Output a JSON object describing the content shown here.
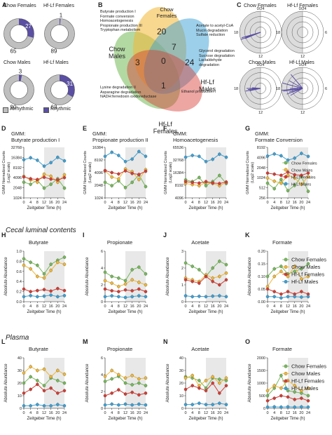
{
  "colors": {
    "chow_f": "#74b957",
    "chow_m": "#f2b733",
    "hf_f": "#d63a31",
    "hf_m": "#3aa0d6",
    "rhythmic": "#5a4fa2",
    "arrhythmic": "#bfbfbf",
    "shade": "#e8e8e8"
  },
  "panelA": {
    "label": "A",
    "donuts": [
      {
        "title": "Chow Females",
        "rhythmic": 27,
        "arrhythmic": 65
      },
      {
        "title": "Hf-Lf Females",
        "rhythmic": 1,
        "arrhythmic": 89
      },
      {
        "title": "Chow Males",
        "rhythmic": 3,
        "arrhythmic": 90
      },
      {
        "title": "Hf-Lf Males",
        "rhythmic": 31,
        "arrhythmic": 63
      }
    ],
    "legend": {
      "arrhythmic": "Arrhythmic",
      "rhythmic": "Rhythmic"
    }
  },
  "panelB": {
    "label": "B",
    "groups": {
      "cf": "Chow Females",
      "cm": "Chow Males",
      "hm": "Hf-Lf Males",
      "hf": "Hf-Lf Females"
    },
    "counts": {
      "cf": "20",
      "cm": "3",
      "hm": "24",
      "hf": "1",
      "cf_hm": "7",
      "center": "0"
    },
    "notes": {
      "cf_only": [
        "Butyrate production I",
        "Formate conversion",
        "Homoacetogenesis",
        "Propionate production III",
        "Tryptophan metabolism"
      ],
      "cf_hm": [
        "Acetate to acetyl-CoA",
        "Mucin degradation",
        "Sulfate reduction"
      ],
      "hm_only": [
        "Glycerol degradation",
        "Sucrose degradation",
        "Lactaldehyde",
        "degradation"
      ],
      "cm_hf": [
        "Lysine degradation II",
        "Asparagine degradation",
        "NADH:ferredoxin oxidoreductase"
      ],
      "hf_only": [
        "Ethanol production I"
      ]
    }
  },
  "panelC": {
    "label": "C",
    "titles": [
      "Chow Females",
      "Hf-Lf Females",
      "Chow Males",
      "Hf-Lf Males"
    ],
    "ticks": {
      "top": "0/24",
      "right": "6",
      "bottom": "12",
      "left": "18"
    }
  },
  "legend": {
    "series": [
      "Chow Females",
      "Chow Males",
      "Hf-Lf Females",
      "Hf-Lf Males"
    ]
  },
  "sections": {
    "cecal": "Cecal luminal contents",
    "plasma": "Plasma"
  },
  "xlabel": "Zeitgeber Time (h)",
  "xticks": [
    "0",
    "4",
    "8",
    "12",
    "16",
    "20",
    "24"
  ],
  "chart_data": [
    {
      "panel": "D",
      "type": "line",
      "title": "GMM:",
      "subtitle": "Butyrate production I",
      "ylabel": "GMM Normalized Counts",
      "ylabel2": "(Log2 scale)",
      "log": true,
      "yticks": [
        "1024",
        "2048",
        "4096",
        "8192",
        "16384",
        "32768"
      ],
      "ylim": [
        1024,
        32768
      ],
      "x": [
        0,
        4,
        8,
        12,
        16,
        20,
        24
      ],
      "series": [
        {
          "name": "Chow Females",
          "values": [
            3000,
            2600,
            3400,
            2000,
            2600,
            3800,
            2000
          ]
        },
        {
          "name": "Chow Males",
          "values": [
            4500,
            3500,
            3000,
            5200,
            4500,
            3000,
            5000
          ]
        },
        {
          "name": "Hf-Lf Females",
          "values": [
            4300,
            3800,
            3600,
            4200,
            3700,
            3500,
            4100
          ]
        },
        {
          "name": "Hf-Lf Males",
          "values": [
            14000,
            16000,
            13500,
            9000,
            11500,
            16500,
            13000
          ]
        }
      ]
    },
    {
      "panel": "E",
      "type": "line",
      "title": "GMM:",
      "subtitle": "Propionate production II",
      "ylabel": "GMM Normalized Counts",
      "ylabel2": "(Log2 scale)",
      "log": true,
      "yticks": [
        "1024",
        "2048",
        "4096",
        "8192",
        "16384"
      ],
      "ylim": [
        1024,
        16384
      ],
      "x": [
        0,
        4,
        8,
        12,
        16,
        20,
        24
      ],
      "series": [
        {
          "name": "Chow Females",
          "values": [
            2400,
            2000,
            2600,
            1800,
            2400,
            3600,
            1900
          ]
        },
        {
          "name": "Chow Males",
          "values": [
            4500,
            3200,
            2900,
            5000,
            4300,
            2800,
            4800
          ]
        },
        {
          "name": "Hf-Lf Females",
          "values": [
            4600,
            4100,
            3800,
            4500,
            3900,
            3700,
            4400
          ]
        },
        {
          "name": "Hf-Lf Males",
          "values": [
            10000,
            12500,
            10500,
            7500,
            8600,
            13000,
            10000
          ]
        }
      ]
    },
    {
      "panel": "F",
      "type": "line",
      "title": "GMM:",
      "subtitle": "Homoacetogenesis",
      "ylabel": "GMM Normalized Counts",
      "ylabel2": "(Log2 scale)",
      "log": true,
      "yticks": [
        "4096",
        "8192",
        "16384",
        "32768",
        "65536"
      ],
      "ylim": [
        4096,
        65536
      ],
      "x": [
        0,
        4,
        8,
        12,
        16,
        20,
        24
      ],
      "series": [
        {
          "name": "Chow Females",
          "values": [
            11000,
            10000,
            12500,
            8000,
            10000,
            14000,
            9000
          ]
        },
        {
          "name": "Chow Males",
          "values": [
            9000,
            8500,
            8000,
            9500,
            9000,
            8000,
            9500
          ]
        },
        {
          "name": "Hf-Lf Females",
          "values": [
            10000,
            9500,
            9200,
            10000,
            9300,
            9000,
            9800
          ]
        },
        {
          "name": "Hf-Lf Males",
          "values": [
            38000,
            42000,
            40000,
            30000,
            34000,
            45000,
            38000
          ]
        }
      ]
    },
    {
      "panel": "G",
      "type": "line",
      "title": "GMM:",
      "subtitle": "Formate Conversion",
      "ylabel": "GMM Normalized Counts",
      "ylabel2": "(Log2 scale)",
      "log": true,
      "yticks": [
        "256",
        "512",
        "1024",
        "2048",
        "4096",
        "8192"
      ],
      "ylim": [
        256,
        8192
      ],
      "x": [
        0,
        4,
        8,
        12,
        16,
        20,
        24
      ],
      "series": [
        {
          "name": "Chow Females",
          "values": [
            700,
            480,
            900,
            420,
            600,
            1100,
            400
          ]
        },
        {
          "name": "Chow Males",
          "values": [
            1000,
            800,
            700,
            1200,
            1000,
            650,
            1100
          ]
        },
        {
          "name": "Hf-Lf Females",
          "values": [
            1400,
            1300,
            1200,
            1500,
            1250,
            1200,
            1400
          ]
        },
        {
          "name": "Hf-Lf Males",
          "values": [
            4500,
            5200,
            4600,
            3400,
            3900,
            5400,
            4400
          ]
        }
      ]
    },
    {
      "panel": "H",
      "type": "line",
      "title": "Butyrate",
      "ylabel": "Absolute Abundance",
      "yticks": [
        "0.0",
        "0.2",
        "0.4",
        "0.6",
        "0.8",
        "1.0"
      ],
      "ylim": [
        0,
        1.0
      ],
      "x": [
        0,
        4,
        8,
        12,
        16,
        20,
        24
      ],
      "series": [
        {
          "name": "Chow Females",
          "values": [
            0.85,
            0.78,
            0.72,
            0.55,
            0.74,
            0.82,
            0.88
          ]
        },
        {
          "name": "Chow Males",
          "values": [
            0.72,
            0.65,
            0.5,
            0.47,
            0.62,
            0.78,
            0.74
          ]
        },
        {
          "name": "Hf-Lf Females",
          "values": [
            0.25,
            0.2,
            0.22,
            0.24,
            0.21,
            0.26,
            0.22
          ]
        },
        {
          "name": "Hf-Lf Males",
          "values": [
            0.1,
            0.12,
            0.1,
            0.11,
            0.13,
            0.1,
            0.12
          ]
        }
      ]
    },
    {
      "panel": "I",
      "type": "line",
      "title": "Propionate",
      "ylabel": "Absolute Abundance",
      "yticks": [
        "0",
        "2",
        "4",
        "6"
      ],
      "ylim": [
        0,
        6
      ],
      "x": [
        0,
        4,
        8,
        12,
        16,
        20,
        24
      ],
      "series": [
        {
          "name": "Chow Females",
          "values": [
            3.5,
            3.0,
            2.8,
            2.5,
            3.8,
            4.1,
            3.3
          ]
        },
        {
          "name": "Chow Males",
          "values": [
            2.5,
            2.2,
            1.8,
            2.1,
            2.6,
            2.3,
            2.0
          ]
        },
        {
          "name": "Hf-Lf Females",
          "values": [
            1.5,
            1.3,
            1.2,
            1.4,
            1.3,
            1.5,
            1.2
          ]
        },
        {
          "name": "Hf-Lf Males",
          "values": [
            0.6,
            0.7,
            0.6,
            0.5,
            0.6,
            0.7,
            0.6
          ]
        }
      ]
    },
    {
      "panel": "J",
      "type": "line",
      "title": "Acetate",
      "ylabel": "Absolute Abundance",
      "yticks": [
        "0",
        "1",
        "2",
        "3"
      ],
      "ylim": [
        0,
        3
      ],
      "x": [
        0,
        4,
        8,
        12,
        16,
        20,
        24
      ],
      "series": [
        {
          "name": "Chow Females",
          "values": [
            2.3,
            2.1,
            1.9,
            1.5,
            2.0,
            2.4,
            2.2
          ]
        },
        {
          "name": "Chow Males",
          "values": [
            1.4,
            1.3,
            1.2,
            1.6,
            1.4,
            1.5,
            1.7
          ]
        },
        {
          "name": "Hf-Lf Females",
          "values": [
            1.3,
            1.2,
            1.1,
            1.5,
            1.2,
            1.0,
            1.3
          ]
        },
        {
          "name": "Hf-Lf Males",
          "values": [
            0.35,
            0.3,
            0.32,
            0.3,
            0.33,
            0.35,
            0.3
          ]
        }
      ]
    },
    {
      "panel": "K",
      "type": "line",
      "title": "Formate",
      "ylabel": "Absolute Abundance",
      "yticks": [
        "0.00",
        "0.05",
        "0.10",
        "0.15",
        "0.20"
      ],
      "ylim": [
        0,
        0.2
      ],
      "x": [
        0,
        4,
        8,
        12,
        16,
        20,
        24
      ],
      "series": [
        {
          "name": "Chow Females",
          "values": [
            0.1,
            0.13,
            0.14,
            0.11,
            0.12,
            0.13,
            0.15
          ]
        },
        {
          "name": "Chow Males",
          "values": [
            0.06,
            0.1,
            0.12,
            0.1,
            0.14,
            0.09,
            0.1
          ]
        },
        {
          "name": "Hf-Lf Females",
          "values": [
            0.05,
            0.04,
            0.03,
            0.04,
            0.03,
            0.04,
            0.03
          ]
        },
        {
          "name": "Hf-Lf Males",
          "values": [
            0.02,
            0.02,
            0.015,
            0.02,
            0.02,
            0.018,
            0.02
          ]
        }
      ]
    },
    {
      "panel": "L",
      "type": "line",
      "title": "Butyrate",
      "ylabel": "Absolute Abundance",
      "yticks": [
        "0",
        "10",
        "20",
        "30",
        "40"
      ],
      "ylim": [
        0,
        40
      ],
      "x": [
        0,
        4,
        8,
        12,
        16,
        20,
        24
      ],
      "series": [
        {
          "name": "Chow Females",
          "values": [
            20,
            25,
            22,
            18,
            24,
            22,
            20
          ]
        },
        {
          "name": "Chow Males",
          "values": [
            28,
            33,
            30,
            31,
            25,
            30,
            27
          ]
        },
        {
          "name": "Hf-Lf Females",
          "values": [
            12,
            15,
            19,
            14,
            16,
            12,
            14
          ]
        },
        {
          "name": "Hf-Lf Males",
          "values": [
            2,
            2,
            3,
            2,
            2,
            3,
            2
          ]
        }
      ]
    },
    {
      "panel": "M",
      "type": "line",
      "title": "Propionate",
      "ylabel": "Absolute Abundance",
      "yticks": [
        "0",
        "2",
        "4",
        "6"
      ],
      "ylim": [
        0,
        6
      ],
      "x": [
        0,
        4,
        8,
        12,
        16,
        20,
        24
      ],
      "series": [
        {
          "name": "Chow Females",
          "values": [
            3.2,
            3.5,
            3.8,
            3.0,
            2.8,
            3.0,
            2.7
          ]
        },
        {
          "name": "Chow Males",
          "values": [
            3.8,
            4.5,
            4.0,
            3.6,
            3.9,
            3.5,
            3.6
          ]
        },
        {
          "name": "Hf-Lf Females",
          "values": [
            1.5,
            1.8,
            2.2,
            1.7,
            1.9,
            1.6,
            1.8
          ]
        },
        {
          "name": "Hf-Lf Males",
          "values": [
            0.4,
            0.5,
            0.4,
            0.5,
            0.4,
            0.5,
            0.4
          ]
        }
      ]
    },
    {
      "panel": "N",
      "type": "line",
      "title": "Acetate",
      "ylabel": "Absolute Abundance",
      "yticks": [
        "0",
        "10",
        "20",
        "30",
        "40"
      ],
      "ylim": [
        0,
        40
      ],
      "x": [
        0,
        4,
        8,
        12,
        16,
        20,
        24
      ],
      "series": [
        {
          "name": "Chow Females",
          "values": [
            25,
            24,
            22,
            16,
            24,
            23,
            22
          ]
        },
        {
          "name": "Chow Males",
          "values": [
            24,
            26,
            18,
            22,
            25,
            20,
            24
          ]
        },
        {
          "name": "Hf-Lf Females",
          "values": [
            15,
            18,
            16,
            14,
            20,
            12,
            18
          ]
        },
        {
          "name": "Hf-Lf Males",
          "values": [
            3,
            3,
            4,
            3,
            3,
            4,
            3
          ]
        }
      ]
    },
    {
      "panel": "O",
      "type": "line",
      "title": "Formate",
      "ylabel": "Absolute Abundance",
      "yticks": [
        "0",
        "500",
        "1000",
        "1500",
        "2000"
      ],
      "ylim": [
        0,
        2000
      ],
      "x": [
        0,
        4,
        8,
        12,
        16,
        20,
        24
      ],
      "series": [
        {
          "name": "Chow Females",
          "values": [
            500,
            800,
            1300,
            700,
            650,
            600,
            500
          ]
        },
        {
          "name": "Chow Males",
          "values": [
            700,
            900,
            800,
            1100,
            900,
            700,
            800
          ]
        },
        {
          "name": "Hf-Lf Females",
          "values": [
            300,
            400,
            500,
            450,
            350,
            400,
            300
          ]
        },
        {
          "name": "Hf-Lf Males",
          "values": [
            50,
            60,
            50,
            60,
            50,
            60,
            50
          ]
        }
      ]
    }
  ]
}
